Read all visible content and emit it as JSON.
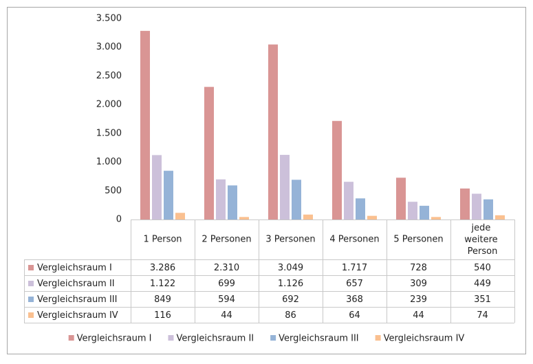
{
  "chart_data": {
    "type": "bar",
    "categories": [
      "1 Person",
      "2 Personen",
      "3 Personen",
      "4 Personen",
      "5 Personen",
      "jede weitere Person"
    ],
    "series": [
      {
        "name": "Vergleichsraum I",
        "color": "#d99594",
        "values": [
          3286,
          2310,
          3049,
          1717,
          728,
          540
        ],
        "value_labels": [
          "3.286",
          "2.310",
          "3.049",
          "1.717",
          "728",
          "540"
        ]
      },
      {
        "name": "Vergleichsraum II",
        "color": "#ccc0da",
        "values": [
          1122,
          699,
          1126,
          657,
          309,
          449
        ],
        "value_labels": [
          "1.122",
          "699",
          "1.126",
          "657",
          "309",
          "449"
        ]
      },
      {
        "name": "Vergleichsraum III",
        "color": "#95b3d7",
        "values": [
          849,
          594,
          692,
          368,
          239,
          351
        ],
        "value_labels": [
          "849",
          "594",
          "692",
          "368",
          "239",
          "351"
        ]
      },
      {
        "name": "Vergleichsraum IV",
        "color": "#fac090",
        "values": [
          116,
          44,
          86,
          64,
          44,
          74
        ],
        "value_labels": [
          "116",
          "44",
          "86",
          "64",
          "44",
          "74"
        ]
      }
    ],
    "ylim": [
      0,
      3500
    ],
    "yticks": [
      0,
      500,
      {
        "value": 1000,
        "label": "1.000"
      },
      {
        "value": 1500,
        "label": "1.500"
      },
      {
        "value": 2000,
        "label": "2.000"
      },
      {
        "value": 2500,
        "label": "2.500"
      },
      {
        "value": 3000,
        "label": "3.000"
      },
      {
        "value": 3500,
        "label": "3.500"
      }
    ],
    "legend": "bottom",
    "grid": false
  }
}
